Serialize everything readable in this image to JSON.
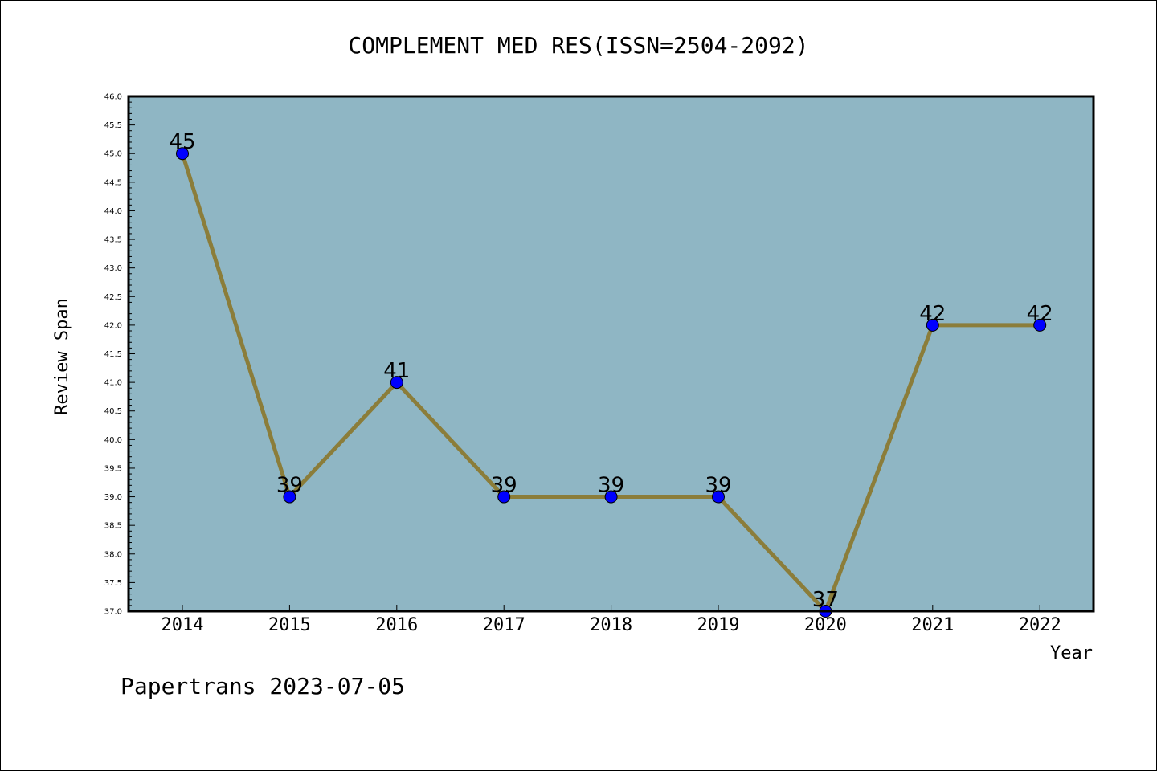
{
  "chart_data": {
    "type": "line",
    "title": "COMPLEMENT MED RES(ISSN=2504-2092)",
    "xlabel": "Year",
    "ylabel": "Review Span",
    "footer": "Papertrans 2023-07-05",
    "categories": [
      "2014",
      "2015",
      "2016",
      "2017",
      "2018",
      "2019",
      "2020",
      "2021",
      "2022"
    ],
    "values": [
      45,
      39,
      41,
      39,
      39,
      39,
      37,
      42,
      42
    ],
    "data_labels": [
      "45",
      "39",
      "41",
      "39",
      "39",
      "39",
      "37",
      "42",
      "42"
    ],
    "ylim": [
      37.0,
      46.0
    ],
    "y_ticks": [
      "37.0",
      "37.5",
      "38.0",
      "38.5",
      "39.0",
      "39.5",
      "40.0",
      "40.5",
      "41.0",
      "41.5",
      "42.0",
      "42.5",
      "43.0",
      "43.5",
      "44.0",
      "44.5",
      "45.0",
      "45.5",
      "46.0"
    ],
    "grid": false,
    "colors": {
      "plot_background": "#8fb6c4",
      "line": "#8b7d3a",
      "marker": "#0000ff"
    }
  }
}
